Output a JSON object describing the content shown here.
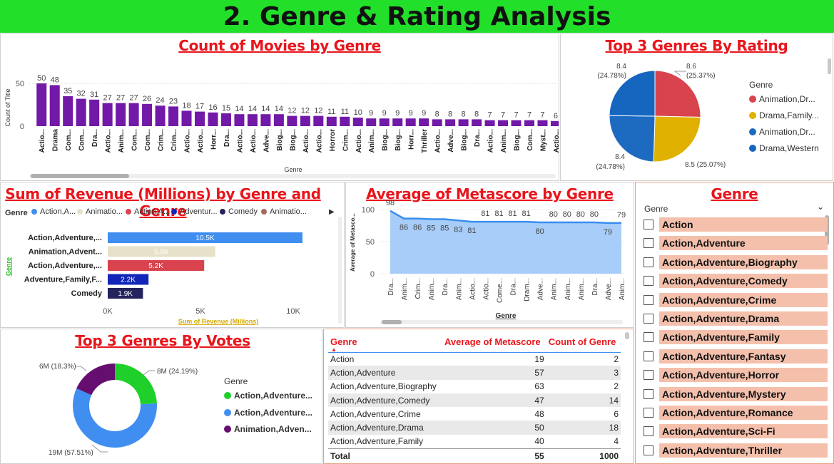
{
  "title": "2. Genre & Rating Analysis",
  "colors": {
    "title_bg": "#22e02a",
    "accent_red": "#e8151c",
    "bar_purple": "#7219a8"
  },
  "genre_count": {
    "title": "Count of Movies by Genre",
    "ylabel": "Count of Title",
    "xlabel": "Genre",
    "yticks": [
      "50",
      "0"
    ],
    "chart_data": {
      "type": "bar",
      "categories": [
        "Actio...",
        "Drama",
        "Com...",
        "Com...",
        "Dra...",
        "Actio...",
        "Anim...",
        "Com...",
        "Com...",
        "Crim...",
        "Crim...",
        "Actio...",
        "Actio...",
        "Horr...",
        "Dra...",
        "Actio...",
        "Actio...",
        "Adve...",
        "Biog...",
        "Biog...",
        "Actio...",
        "Actio...",
        "Horror",
        "Crim...",
        "Actio...",
        "Anim...",
        "Biog...",
        "Biog...",
        "Horr...",
        "Thriller",
        "Actio...",
        "Adve...",
        "Biog...",
        "Dra...",
        "Actio...",
        "Anim...",
        "Biog...",
        "Com...",
        "Myst...",
        "Actio..."
      ],
      "values": [
        50,
        48,
        35,
        32,
        31,
        27,
        27,
        27,
        26,
        24,
        23,
        18,
        17,
        16,
        15,
        14,
        14,
        14,
        14,
        12,
        12,
        12,
        11,
        11,
        10,
        9,
        9,
        9,
        9,
        9,
        8,
        8,
        8,
        8,
        7,
        7,
        7,
        7,
        7,
        6
      ],
      "ylim": [
        0,
        58
      ],
      "bar_color": "#7219a8"
    }
  },
  "top3_rating": {
    "title": "Top 3 Genres By Rating",
    "legend_title": "Genre",
    "chart_data": {
      "type": "pie",
      "slices": [
        {
          "name": "Animation,Dr...",
          "value": 8.6,
          "pct": "25.37%",
          "color": "#d9434e"
        },
        {
          "name": "Drama,Family...",
          "value": 8.5,
          "pct": "25.07%",
          "color": "#e0b100"
        },
        {
          "name": "Animation,Dr...",
          "value": 8.4,
          "pct": "24.78%",
          "color": "#1d6bc0"
        },
        {
          "name": "Drama,Western",
          "value": 8.4,
          "pct": "24.78%",
          "color": "#1666c0"
        }
      ]
    },
    "labels": {
      "top_right": {
        "v": "8.6",
        "p": "(25.37%)"
      },
      "bottom_right": {
        "v": "8.5 (25.07%)"
      },
      "bottom_left": {
        "v": "8.4",
        "p": "(24.78%)"
      },
      "top_left": {
        "v": "8.4",
        "p": "(24.78%)"
      }
    }
  },
  "revenue": {
    "title": "Sum of Revenue (Millions) by Genre and Genre",
    "legend_title": "Genre",
    "legend": [
      {
        "name": "Action,A...",
        "color": "#3f8ef0"
      },
      {
        "name": "Animatio...",
        "color": "#e6e1c8"
      },
      {
        "name": "Action,A...",
        "color": "#d9434e"
      },
      {
        "name": "Adventur...",
        "color": "#1227b8"
      },
      {
        "name": "Comedy",
        "color": "#24235e"
      },
      {
        "name": "Animatio...",
        "color": "#a66b5e"
      }
    ],
    "ylabel": "Genre",
    "xlabel": "Sum of Revenue (Millions)",
    "xticks": [
      "0K",
      "5K",
      "10K"
    ],
    "chart_data": {
      "type": "bar",
      "orientation": "horizontal",
      "categories": [
        "Action,Adventure,...",
        "Animation,Advent...",
        "Action,Adventure,...",
        "Adventure,Family,F...",
        "Comedy"
      ],
      "values": [
        10.5,
        5.8,
        5.2,
        2.2,
        1.9
      ],
      "labels": [
        "10.5K",
        "5.8K",
        "5.2K",
        "2.2K",
        "1.9K"
      ],
      "colors": [
        "#3f8ef0",
        "#e6e1c8",
        "#d9434e",
        "#1227b8",
        "#24235e"
      ],
      "xlim": [
        0,
        11
      ]
    }
  },
  "metascore": {
    "title": "Average of Metascore by Genre",
    "ylabel": "Average of Metasco...",
    "xlabel": "Genre",
    "yticks": [
      "100",
      "50",
      "0"
    ],
    "chart_data": {
      "type": "area",
      "categories": [
        "Dra...",
        "Anim...",
        "Crim...",
        "Anim...",
        "Dra...",
        "Anim...",
        "Actio...",
        "Actio...",
        "Come...",
        "Dra...",
        "Dram...",
        "Adve...",
        "Anim...",
        "Anim...",
        "Anim...",
        "Dra...",
        "Adve...",
        "Anim..."
      ],
      "values": [
        98,
        86,
        86,
        85,
        85,
        83,
        81,
        81,
        81,
        81,
        81,
        80,
        80,
        80,
        80,
        80,
        79,
        79
      ],
      "labels": [
        "98",
        "86",
        "86",
        "85",
        "85",
        "83",
        "81",
        "81",
        "81",
        "81",
        "81",
        "80",
        "80",
        "80",
        "80",
        "80",
        "79",
        "79"
      ],
      "ylim": [
        0,
        100
      ],
      "color": "#3a8ef0"
    }
  },
  "votes": {
    "title": "Top 3 Genres By Votes",
    "legend_title": "Genre",
    "chart_data": {
      "type": "pie",
      "donut": true,
      "slices": [
        {
          "name": "Action,Adventure...",
          "value": 24.19,
          "label": "8M (24.19%)",
          "color": "#1fd02a"
        },
        {
          "name": "Action,Adventure...",
          "value": 57.51,
          "label": "19M (57.51%)",
          "color": "#3f8ef0"
        },
        {
          "name": "Animation,Adven...",
          "value": 18.3,
          "label": "6M (18.3%)",
          "color": "#650e70"
        }
      ]
    }
  },
  "table": {
    "headers": [
      "Genre",
      "Average of Metascore",
      "Count of Genre"
    ],
    "rows": [
      [
        "Action",
        "19",
        "2"
      ],
      [
        "Action,Adventure",
        "57",
        "3"
      ],
      [
        "Action,Adventure,Biography",
        "63",
        "2"
      ],
      [
        "Action,Adventure,Comedy",
        "47",
        "14"
      ],
      [
        "Action,Adventure,Crime",
        "48",
        "6"
      ],
      [
        "Action,Adventure,Drama",
        "50",
        "18"
      ],
      [
        "Action,Adventure,Family",
        "40",
        "4"
      ]
    ],
    "total": [
      "Total",
      "55",
      "1000"
    ]
  },
  "slicer": {
    "title": "Genre",
    "header": "Genre",
    "items": [
      "Action",
      "Action,Adventure",
      "Action,Adventure,Biography",
      "Action,Adventure,Comedy",
      "Action,Adventure,Crime",
      "Action,Adventure,Drama",
      "Action,Adventure,Family",
      "Action,Adventure,Fantasy",
      "Action,Adventure,Horror",
      "Action,Adventure,Mystery",
      "Action,Adventure,Romance",
      "Action,Adventure,Sci-Fi",
      "Action,Adventure,Thriller"
    ]
  }
}
